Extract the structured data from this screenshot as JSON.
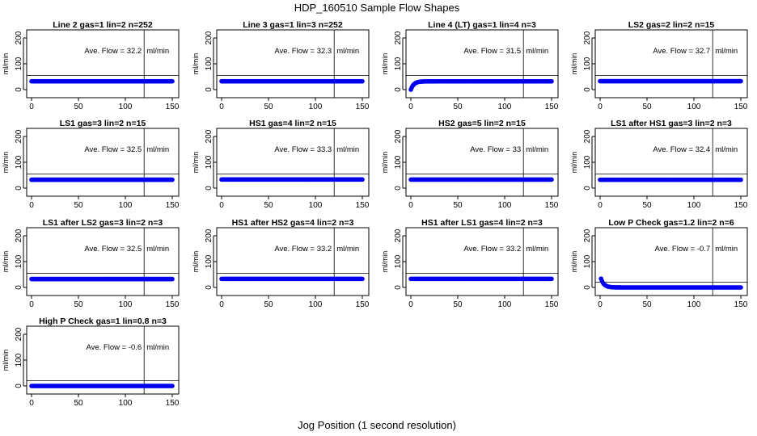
{
  "figure": {
    "title": "HDP_160510  Sample Flow Shapes",
    "xlabel": "Jog Position (1 second resolution)"
  },
  "colors": {
    "points": "#0000ee",
    "axes": "#000000"
  },
  "chart_data": [
    {
      "type": "scatter",
      "title": "Line 2 gas=1 lin=2 n=252",
      "ylabel": "ml/min",
      "xlim": [
        0,
        150
      ],
      "ylim": [
        -20,
        210
      ],
      "xticks": [
        "0",
        "50",
        "100",
        "150"
      ],
      "yticks": [
        "0",
        "100",
        "200"
      ],
      "avg_label": "Ave. Flow =",
      "avg_value": "32.2",
      "unit": "ml/min",
      "vline_x": 120,
      "hline_y": 55,
      "profile": "flat",
      "level": 32.2,
      "x_range": [
        0,
        150
      ]
    },
    {
      "type": "scatter",
      "title": "Line 3 gas=1 lin=3 n=252",
      "ylabel": "ml/min",
      "xlim": [
        0,
        150
      ],
      "ylim": [
        -20,
        210
      ],
      "xticks": [
        "0",
        "50",
        "100",
        "150"
      ],
      "yticks": [
        "0",
        "100",
        "200"
      ],
      "avg_label": "Ave. Flow =",
      "avg_value": "32.3",
      "unit": "ml/min",
      "vline_x": 120,
      "hline_y": 55,
      "profile": "flat",
      "level": 32.3,
      "x_range": [
        0,
        150
      ]
    },
    {
      "type": "scatter",
      "title": "Line 4 (LT) gas=1 lin=4 n=3",
      "ylabel": "ml/min",
      "xlim": [
        0,
        150
      ],
      "ylim": [
        -20,
        210
      ],
      "xticks": [
        "0",
        "50",
        "100",
        "150"
      ],
      "yticks": [
        "0",
        "100",
        "200"
      ],
      "avg_label": "Ave. Flow =",
      "avg_value": "31.5",
      "unit": "ml/min",
      "vline_x": 120,
      "hline_y": 55,
      "profile": "rise",
      "level": 32,
      "x_range": [
        0,
        150
      ]
    },
    {
      "type": "scatter",
      "title": "LS2 gas=2 lin=2 n=15",
      "ylabel": "ml/min",
      "xlim": [
        0,
        150
      ],
      "ylim": [
        -20,
        210
      ],
      "xticks": [
        "0",
        "50",
        "100",
        "150"
      ],
      "yticks": [
        "0",
        "100",
        "200"
      ],
      "avg_label": "Ave. Flow =",
      "avg_value": "32.7",
      "unit": "ml/min",
      "vline_x": 120,
      "hline_y": 55,
      "profile": "flat",
      "level": 32.7,
      "x_range": [
        0,
        150
      ]
    },
    {
      "type": "scatter",
      "title": "LS1 gas=3 lin=2 n=15",
      "ylabel": "ml/min",
      "xlim": [
        0,
        150
      ],
      "ylim": [
        -20,
        210
      ],
      "xticks": [
        "0",
        "50",
        "100",
        "150"
      ],
      "yticks": [
        "0",
        "100",
        "200"
      ],
      "avg_label": "Ave. Flow =",
      "avg_value": "32.5",
      "unit": "ml/min",
      "vline_x": 120,
      "hline_y": 55,
      "profile": "flat",
      "level": 32.5,
      "x_range": [
        0,
        150
      ]
    },
    {
      "type": "scatter",
      "title": "HS1 gas=4 lin=2 n=15",
      "ylabel": "ml/min",
      "xlim": [
        0,
        150
      ],
      "ylim": [
        -20,
        210
      ],
      "xticks": [
        "0",
        "50",
        "100",
        "150"
      ],
      "yticks": [
        "0",
        "100",
        "200"
      ],
      "avg_label": "Ave. Flow =",
      "avg_value": "33.3",
      "unit": "ml/min",
      "vline_x": 120,
      "hline_y": 55,
      "profile": "flat",
      "level": 33.3,
      "x_range": [
        0,
        150
      ]
    },
    {
      "type": "scatter",
      "title": "HS2 gas=5 lin=2 n=15",
      "ylabel": "ml/min",
      "xlim": [
        0,
        150
      ],
      "ylim": [
        -20,
        210
      ],
      "xticks": [
        "0",
        "50",
        "100",
        "150"
      ],
      "yticks": [
        "0",
        "100",
        "200"
      ],
      "avg_label": "Ave. Flow =",
      "avg_value": "33",
      "unit": "ml/min",
      "vline_x": 120,
      "hline_y": 55,
      "profile": "flat",
      "level": 33,
      "x_range": [
        0,
        150
      ]
    },
    {
      "type": "scatter",
      "title": "LS1 after HS1 gas=3 lin=2 n=3",
      "ylabel": "ml/min",
      "xlim": [
        0,
        150
      ],
      "ylim": [
        -20,
        210
      ],
      "xticks": [
        "0",
        "50",
        "100",
        "150"
      ],
      "yticks": [
        "0",
        "100",
        "200"
      ],
      "avg_label": "Ave. Flow =",
      "avg_value": "32.4",
      "unit": "ml/min",
      "vline_x": 120,
      "hline_y": 55,
      "profile": "flat",
      "level": 32.4,
      "x_range": [
        0,
        150
      ]
    },
    {
      "type": "scatter",
      "title": "LS1 after LS2 gas=3 lin=2 n=3",
      "ylabel": "ml/min",
      "xlim": [
        0,
        150
      ],
      "ylim": [
        -20,
        210
      ],
      "xticks": [
        "0",
        "50",
        "100",
        "150"
      ],
      "yticks": [
        "0",
        "100",
        "200"
      ],
      "avg_label": "Ave. Flow =",
      "avg_value": "32.5",
      "unit": "ml/min",
      "vline_x": 120,
      "hline_y": 55,
      "profile": "flat",
      "level": 32.5,
      "x_range": [
        0,
        150
      ]
    },
    {
      "type": "scatter",
      "title": "HS1 after HS2 gas=4 lin=2 n=3",
      "ylabel": "ml/min",
      "xlim": [
        0,
        150
      ],
      "ylim": [
        -20,
        210
      ],
      "xticks": [
        "0",
        "50",
        "100",
        "150"
      ],
      "yticks": [
        "0",
        "100",
        "200"
      ],
      "avg_label": "Ave. Flow =",
      "avg_value": "33.2",
      "unit": "ml/min",
      "vline_x": 120,
      "hline_y": 55,
      "profile": "flat",
      "level": 33.2,
      "x_range": [
        0,
        150
      ]
    },
    {
      "type": "scatter",
      "title": "HS1 after LS1 gas=4 lin=2 n=3",
      "ylabel": "ml/min",
      "xlim": [
        0,
        150
      ],
      "ylim": [
        -20,
        210
      ],
      "xticks": [
        "0",
        "50",
        "100",
        "150"
      ],
      "yticks": [
        "0",
        "100",
        "200"
      ],
      "avg_label": "Ave. Flow =",
      "avg_value": "33.2",
      "unit": "ml/min",
      "vline_x": 120,
      "hline_y": 55,
      "profile": "flat",
      "level": 33.2,
      "x_range": [
        0,
        150
      ]
    },
    {
      "type": "scatter",
      "title": "Low P Check gas=1.2 lin=2 n=6",
      "ylabel": "ml/min",
      "xlim": [
        0,
        150
      ],
      "ylim": [
        -20,
        210
      ],
      "xticks": [
        "0",
        "50",
        "100",
        "150"
      ],
      "yticks": [
        "0",
        "100",
        "200"
      ],
      "avg_label": "Ave. Flow =",
      "avg_value": "-0.7",
      "unit": "ml/min",
      "vline_x": 120,
      "hline_y": 20,
      "profile": "decay",
      "level": 0,
      "x_range": [
        1,
        150
      ]
    },
    {
      "type": "scatter",
      "title": "High P Check gas=1 lin=0.8 n=3",
      "ylabel": "ml/min",
      "xlim": [
        0,
        150
      ],
      "ylim": [
        -20,
        210
      ],
      "xticks": [
        "0",
        "50",
        "100",
        "150"
      ],
      "yticks": [
        "0",
        "100",
        "200"
      ],
      "avg_label": "Ave. Flow =",
      "avg_value": "-0.6",
      "unit": "ml/min",
      "vline_x": 120,
      "hline_y": 20,
      "profile": "flat",
      "level": 0,
      "x_range": [
        0,
        150
      ]
    }
  ]
}
